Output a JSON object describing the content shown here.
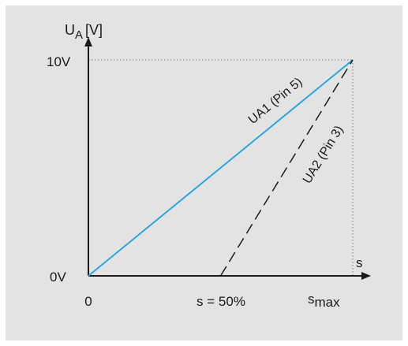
{
  "chart_data": {
    "type": "line",
    "ylabel_main": "U",
    "ylabel_sub": "A",
    "ylabel_unit": "[V]",
    "xlabel": "s",
    "x_ticks": [
      "0",
      "s = 50%"
    ],
    "x_tick_max_prefix": "s",
    "x_tick_max_sub": "max",
    "y_ticks": [
      "0V",
      "10V"
    ],
    "xlim": [
      0,
      100
    ],
    "ylim": [
      0,
      10
    ],
    "grid": false,
    "reference_lines": [
      {
        "axis": "y",
        "value": 10,
        "style": "dotted"
      },
      {
        "axis": "x",
        "value": 100,
        "style": "dotted"
      }
    ],
    "series": [
      {
        "name": "UA1 (Pin 5)",
        "color": "#2aa6df",
        "dash": "solid",
        "points": [
          [
            0,
            0
          ],
          [
            100,
            10
          ]
        ]
      },
      {
        "name": "UA2 (Pin 3)",
        "color": "#1a1a1a",
        "dash": "dashed",
        "points": [
          [
            50,
            0
          ],
          [
            100,
            10
          ]
        ]
      }
    ]
  }
}
